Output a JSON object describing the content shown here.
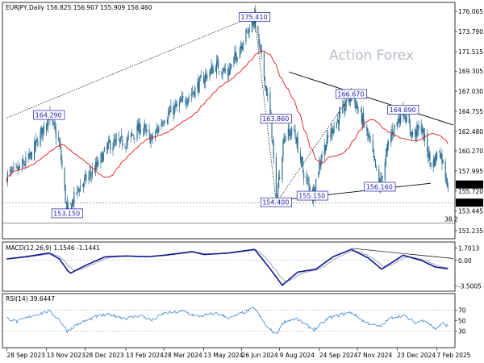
{
  "header": {
    "main": "EURJPY,Daily  156.825 156.907 155.909 156.460",
    "macd": "MACD(12,26,9) 1.1546 -1.1441",
    "rsi": "RSI(14) 39.6447"
  },
  "watermark": "Action Forex",
  "chart_data": [
    {
      "type": "candlestick",
      "title": "EURJPY,Daily",
      "ohlc_last": {
        "open": 156.825,
        "high": 156.907,
        "low": 155.909,
        "close": 156.46
      },
      "x_ticks": [
        "28 Sep 2023",
        "13 Nov 2023",
        "28 Dec 2023",
        "13 Feb 2024",
        "28 Mar 2024",
        "13 May 2024",
        "26 Jun 2024",
        "9 Aug 2024",
        "24 Sep 2024",
        "7 Nov 2024",
        "23 Dec 2024",
        "7 Feb 2025"
      ],
      "ylim": [
        150.4,
        177.0
      ],
      "y_ticks": [
        176.065,
        173.79,
        171.515,
        169.305,
        167.03,
        164.755,
        162.48,
        160.27,
        157.995,
        155.72,
        153.445,
        151.235
      ],
      "price_labels": [
        {
          "value": 156.46,
          "text": "156.460"
        },
        {
          "value": 154.4,
          "text": "154.400"
        }
      ],
      "horizontal_lines": [
        {
          "value": 154.4,
          "style": "dashed"
        },
        {
          "value": 152.1,
          "style": "solid",
          "label": "38.2"
        }
      ],
      "annotations": [
        {
          "text": "175.410",
          "date": "2024-07-11",
          "value": 175.41
        },
        {
          "text": "164.290",
          "date": "2023-11-16",
          "value": 164.29
        },
        {
          "text": "163.860",
          "date": "2024-08-05",
          "value": 163.86
        },
        {
          "text": "166.670",
          "date": "2024-10-31",
          "value": 166.67
        },
        {
          "text": "164.890",
          "date": "2024-12-30",
          "value": 164.89
        },
        {
          "text": "155.150",
          "date": "2024-09-16",
          "value": 155.15
        },
        {
          "text": "156.160",
          "date": "2024-12-03",
          "value": 156.16
        },
        {
          "text": "153.150",
          "date": "2023-12-07",
          "value": 153.15
        },
        {
          "text": "154.400",
          "date": "2024-08-05",
          "value": 154.4
        }
      ],
      "trendlines": [
        {
          "style": "dotted",
          "from": {
            "date": "2023-09-28",
            "value": 164.0
          },
          "to": {
            "date": "2024-07-11",
            "value": 175.6
          }
        },
        {
          "style": "solid",
          "from": {
            "date": "2024-08-20",
            "value": 169.2
          },
          "to": {
            "date": "2025-02-26",
            "value": 163.2
          }
        },
        {
          "style": "solid",
          "from": {
            "date": "2024-08-20",
            "value": 154.8
          },
          "to": {
            "date": "2025-01-31",
            "value": 156.6
          }
        },
        {
          "style": "dotted",
          "from": {
            "date": "2024-07-11",
            "value": 175.4
          },
          "to": {
            "date": "2024-08-05",
            "value": 154.4
          }
        },
        {
          "style": "dotted",
          "from": {
            "date": "2024-08-05",
            "value": 154.4
          },
          "to": {
            "date": "2024-10-31",
            "value": 166.7
          }
        }
      ],
      "moving_average_color": "#e21b1b",
      "candle_color": "#2f6f93",
      "price_keypoints": [
        {
          "date": "2023-09-28",
          "value": 157.5
        },
        {
          "date": "2023-10-10",
          "value": 158.0
        },
        {
          "date": "2023-10-25",
          "value": 159.5
        },
        {
          "date": "2023-11-16",
          "value": 164.3
        },
        {
          "date": "2023-11-28",
          "value": 161.0
        },
        {
          "date": "2023-12-07",
          "value": 153.2
        },
        {
          "date": "2023-12-20",
          "value": 156.0
        },
        {
          "date": "2024-01-10",
          "value": 158.5
        },
        {
          "date": "2024-01-25",
          "value": 161.0
        },
        {
          "date": "2024-02-13",
          "value": 161.3
        },
        {
          "date": "2024-03-01",
          "value": 163.0
        },
        {
          "date": "2024-03-14",
          "value": 161.5
        },
        {
          "date": "2024-03-28",
          "value": 164.0
        },
        {
          "date": "2024-04-15",
          "value": 165.5
        },
        {
          "date": "2024-05-01",
          "value": 167.0
        },
        {
          "date": "2024-05-13",
          "value": 168.5
        },
        {
          "date": "2024-05-28",
          "value": 170.0
        },
        {
          "date": "2024-06-10",
          "value": 169.0
        },
        {
          "date": "2024-06-26",
          "value": 172.5
        },
        {
          "date": "2024-07-11",
          "value": 175.4
        },
        {
          "date": "2024-07-20",
          "value": 170.0
        },
        {
          "date": "2024-07-30",
          "value": 163.9
        },
        {
          "date": "2024-08-05",
          "value": 154.4
        },
        {
          "date": "2024-08-14",
          "value": 162.0
        },
        {
          "date": "2024-08-26",
          "value": 162.5
        },
        {
          "date": "2024-09-05",
          "value": 158.0
        },
        {
          "date": "2024-09-16",
          "value": 155.2
        },
        {
          "date": "2024-09-27",
          "value": 160.0
        },
        {
          "date": "2024-10-10",
          "value": 163.0
        },
        {
          "date": "2024-10-20",
          "value": 164.5
        },
        {
          "date": "2024-10-31",
          "value": 166.7
        },
        {
          "date": "2024-11-12",
          "value": 164.0
        },
        {
          "date": "2024-11-22",
          "value": 161.0
        },
        {
          "date": "2024-12-03",
          "value": 156.2
        },
        {
          "date": "2024-12-15",
          "value": 162.0
        },
        {
          "date": "2024-12-30",
          "value": 164.9
        },
        {
          "date": "2025-01-10",
          "value": 162.0
        },
        {
          "date": "2025-01-20",
          "value": 163.0
        },
        {
          "date": "2025-02-01",
          "value": 158.5
        },
        {
          "date": "2025-02-10",
          "value": 160.5
        },
        {
          "date": "2025-02-20",
          "value": 156.46
        }
      ]
    },
    {
      "type": "line",
      "title": "MACD(12,26,9) 1.1546 -1.1441",
      "ylim": [
        -4.1,
        2.4
      ],
      "y_ticks": [
        1.7013,
        0.0,
        -3.5005
      ],
      "series_colors": {
        "macd": "#0c1a8c",
        "signal": "#9aa3c2"
      },
      "trendline": {
        "from": {
          "date": "2024-10-31",
          "value": 1.65
        },
        "to": {
          "date": "2025-02-26",
          "value": 0.25
        }
      },
      "macd_keypoints": [
        {
          "date": "2023-09-28",
          "value": 0.2
        },
        {
          "date": "2023-10-20",
          "value": 0.5
        },
        {
          "date": "2023-11-16",
          "value": 1.0
        },
        {
          "date": "2023-11-28",
          "value": 0.2
        },
        {
          "date": "2023-12-10",
          "value": -1.8
        },
        {
          "date": "2023-12-28",
          "value": -0.7
        },
        {
          "date": "2024-01-20",
          "value": 0.5
        },
        {
          "date": "2024-02-13",
          "value": 0.6
        },
        {
          "date": "2024-03-10",
          "value": 0.5
        },
        {
          "date": "2024-03-28",
          "value": 0.7
        },
        {
          "date": "2024-04-30",
          "value": 1.2
        },
        {
          "date": "2024-05-13",
          "value": 0.8
        },
        {
          "date": "2024-06-10",
          "value": 1.0
        },
        {
          "date": "2024-07-11",
          "value": 1.5
        },
        {
          "date": "2024-07-28",
          "value": -1.0
        },
        {
          "date": "2024-08-12",
          "value": -3.4
        },
        {
          "date": "2024-08-30",
          "value": -1.6
        },
        {
          "date": "2024-09-20",
          "value": -1.2
        },
        {
          "date": "2024-10-10",
          "value": 0.5
        },
        {
          "date": "2024-10-31",
          "value": 1.5
        },
        {
          "date": "2024-11-20",
          "value": 0.3
        },
        {
          "date": "2024-12-05",
          "value": -1.2
        },
        {
          "date": "2024-12-30",
          "value": 0.7
        },
        {
          "date": "2025-01-20",
          "value": 0.0
        },
        {
          "date": "2025-02-05",
          "value": -0.9
        },
        {
          "date": "2025-02-20",
          "value": -1.15
        }
      ]
    },
    {
      "type": "line",
      "title": "RSI(14) 39.6447",
      "ylim": [
        0,
        100
      ],
      "y_ticks": [
        70,
        50,
        30
      ],
      "level_lines": [
        70,
        30
      ],
      "series_color": "#3a86d4",
      "rsi_keypoints": [
        {
          "date": "2023-09-28",
          "value": 55
        },
        {
          "date": "2023-10-10",
          "value": 48
        },
        {
          "date": "2023-10-28",
          "value": 60
        },
        {
          "date": "2023-11-16",
          "value": 68
        },
        {
          "date": "2023-11-28",
          "value": 52
        },
        {
          "date": "2023-12-07",
          "value": 30
        },
        {
          "date": "2023-12-20",
          "value": 44
        },
        {
          "date": "2024-01-10",
          "value": 58
        },
        {
          "date": "2024-01-25",
          "value": 62
        },
        {
          "date": "2024-02-13",
          "value": 54
        },
        {
          "date": "2024-03-01",
          "value": 60
        },
        {
          "date": "2024-03-14",
          "value": 50
        },
        {
          "date": "2024-03-28",
          "value": 64
        },
        {
          "date": "2024-04-20",
          "value": 68
        },
        {
          "date": "2024-05-05",
          "value": 58
        },
        {
          "date": "2024-05-28",
          "value": 64
        },
        {
          "date": "2024-06-12",
          "value": 55
        },
        {
          "date": "2024-07-11",
          "value": 74
        },
        {
          "date": "2024-07-25",
          "value": 38
        },
        {
          "date": "2024-08-05",
          "value": 24
        },
        {
          "date": "2024-08-14",
          "value": 48
        },
        {
          "date": "2024-08-28",
          "value": 54
        },
        {
          "date": "2024-09-10",
          "value": 40
        },
        {
          "date": "2024-09-18",
          "value": 33
        },
        {
          "date": "2024-10-05",
          "value": 55
        },
        {
          "date": "2024-10-20",
          "value": 62
        },
        {
          "date": "2024-10-31",
          "value": 66
        },
        {
          "date": "2024-11-15",
          "value": 48
        },
        {
          "date": "2024-12-03",
          "value": 38
        },
        {
          "date": "2024-12-15",
          "value": 55
        },
        {
          "date": "2024-12-30",
          "value": 60
        },
        {
          "date": "2025-01-14",
          "value": 46
        },
        {
          "date": "2025-01-24",
          "value": 52
        },
        {
          "date": "2025-02-05",
          "value": 34
        },
        {
          "date": "2025-02-14",
          "value": 45
        },
        {
          "date": "2025-02-20",
          "value": 39.64
        }
      ]
    }
  ]
}
